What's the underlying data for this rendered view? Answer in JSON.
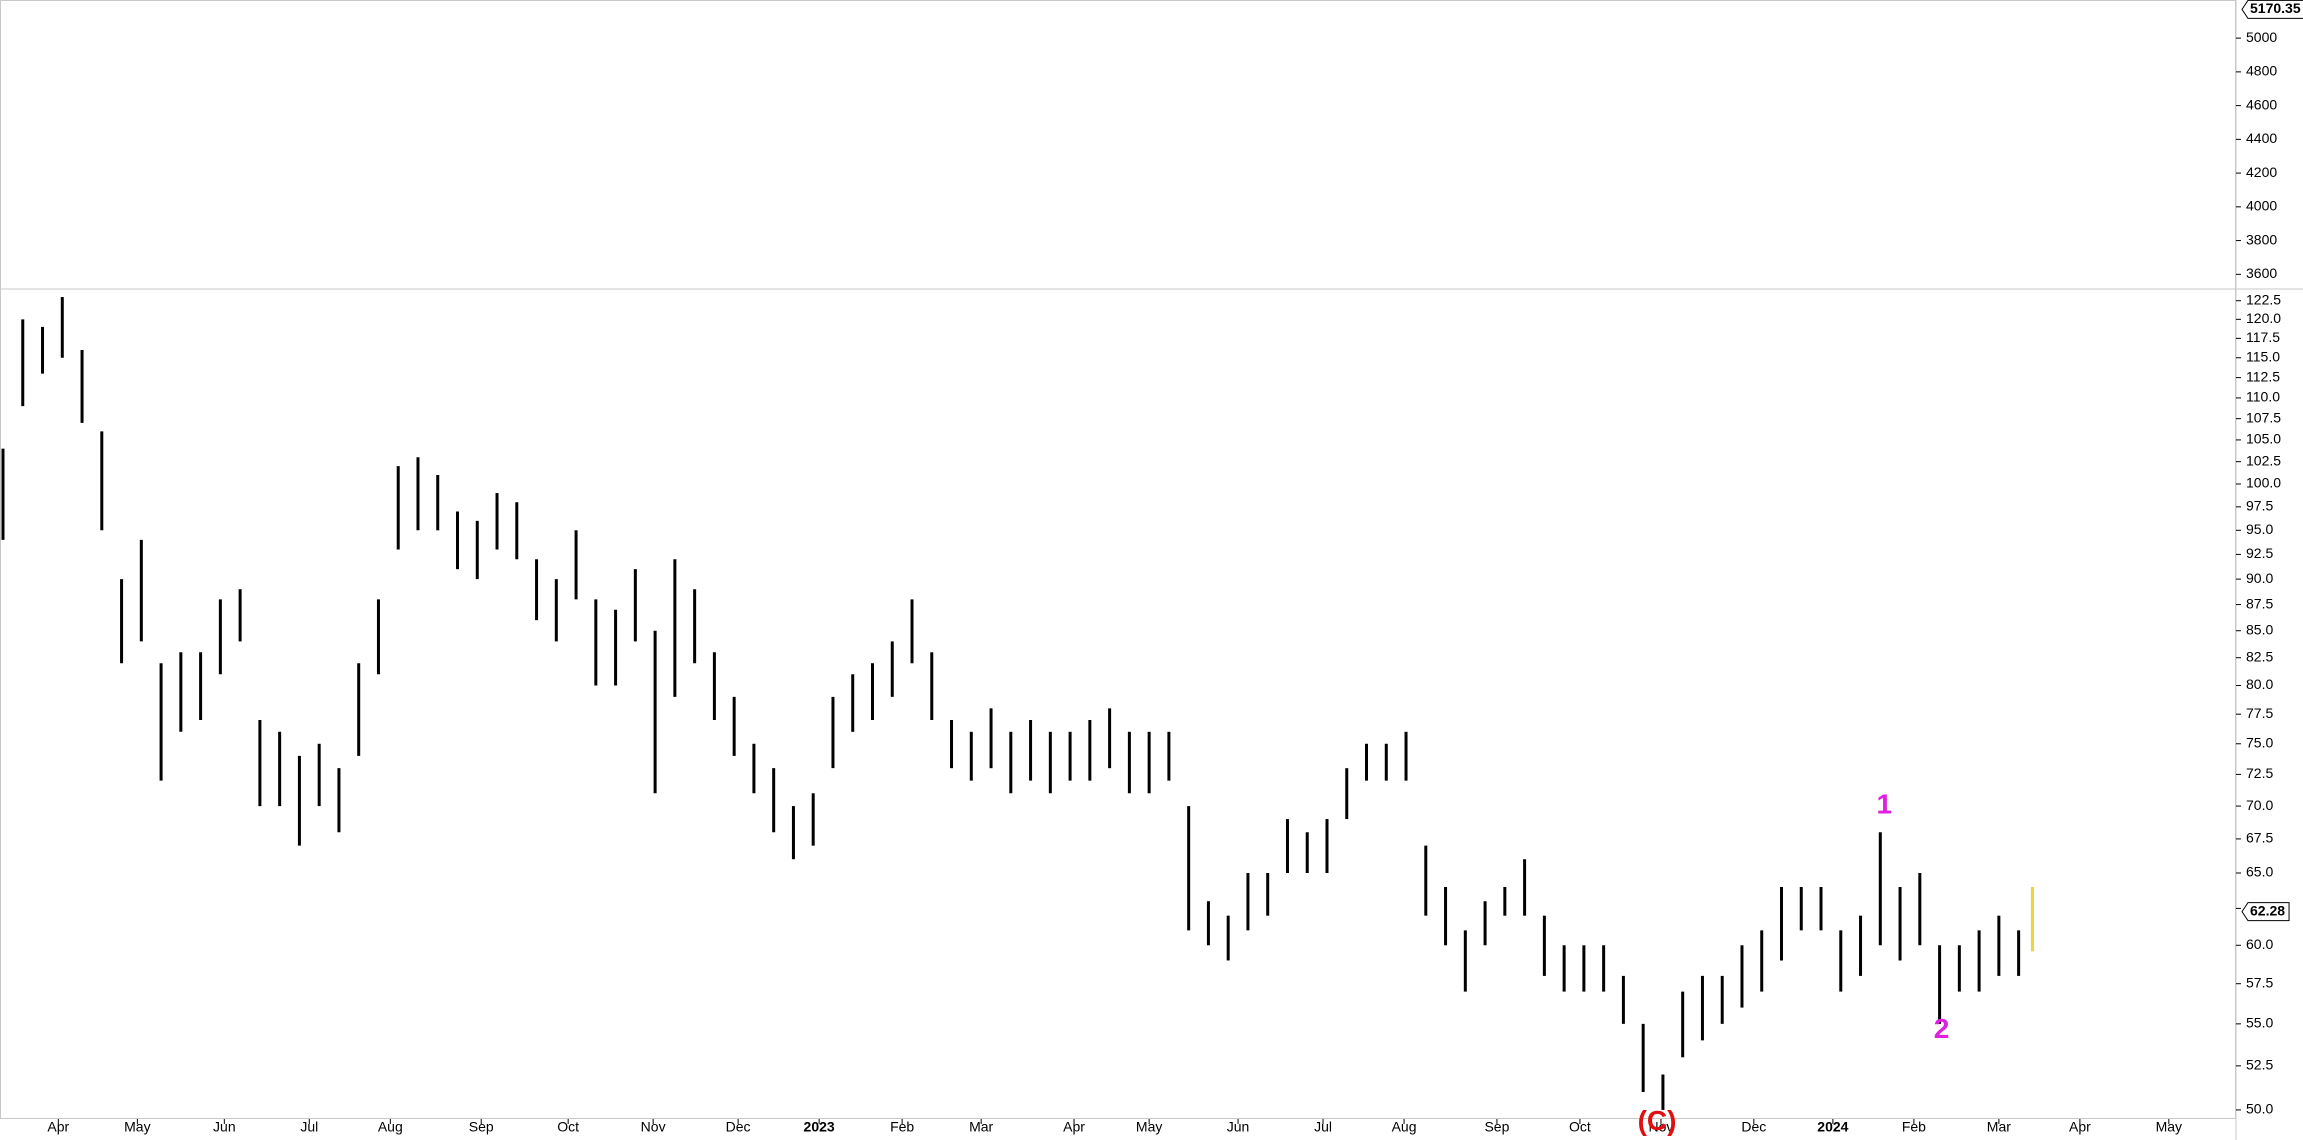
{
  "chart_data": [
    {
      "type": "axis-panel",
      "ylim": [
        3513,
        5226
      ],
      "yticks": [
        3600,
        3800,
        4000,
        4200,
        4400,
        4600,
        4800,
        5000
      ],
      "last_value": 5170.35
    },
    {
      "type": "range-bar",
      "log_scale": true,
      "color": "#000000",
      "highlight_color": "#f2d338",
      "x": [
        0,
        1,
        2,
        3,
        4,
        5,
        6,
        7,
        8,
        9,
        10,
        11,
        12,
        13,
        14,
        15,
        16,
        17,
        18,
        19,
        20,
        21,
        22,
        23,
        24,
        25,
        26,
        27,
        28,
        29,
        30,
        31,
        32,
        33,
        34,
        35,
        36,
        37,
        38,
        39,
        40,
        41,
        42,
        43,
        44,
        45,
        46,
        47,
        48,
        49,
        50,
        51,
        52,
        53,
        54,
        55,
        56,
        57,
        58,
        59,
        60,
        61,
        62,
        63,
        64,
        65,
        66,
        67,
        68,
        69,
        70,
        71,
        72,
        73,
        74,
        75,
        76,
        77,
        78,
        79,
        80,
        81,
        82,
        83,
        84,
        85,
        86,
        87,
        88,
        89,
        90,
        91,
        92,
        93,
        94,
        95,
        96,
        97,
        98,
        99,
        100,
        101,
        102,
        102.7
      ],
      "high": [
        104,
        120,
        119,
        123,
        116,
        106,
        90,
        94,
        82,
        83,
        83,
        88,
        89,
        77,
        76,
        74,
        75,
        73,
        82,
        88,
        102,
        103,
        101,
        97,
        96,
        99,
        98,
        92,
        90,
        95,
        88,
        87,
        91,
        85,
        92,
        89,
        83,
        79,
        75,
        73,
        70,
        71,
        79,
        81,
        82,
        84,
        88,
        83,
        77,
        76,
        78,
        76,
        77,
        76,
        76,
        77,
        78,
        76,
        76,
        76,
        70,
        63,
        62,
        65,
        65,
        69,
        68,
        69,
        73,
        75,
        75,
        76,
        67,
        64,
        61,
        63,
        64,
        66,
        62,
        60,
        60,
        60,
        58,
        55,
        52,
        57,
        58,
        58,
        60,
        61,
        64,
        64,
        64,
        61,
        62,
        68,
        64,
        65,
        60,
        60,
        61,
        62,
        61,
        64
      ],
      "low": [
        94,
        109,
        113,
        115,
        107,
        95,
        82,
        84,
        72,
        76,
        77,
        81,
        84,
        70,
        70,
        67,
        70,
        68,
        74,
        81,
        93,
        95,
        95,
        91,
        90,
        93,
        92,
        86,
        84,
        88,
        80,
        80,
        84,
        71,
        79,
        82,
        77,
        74,
        71,
        68,
        66,
        67,
        73,
        76,
        77,
        79,
        82,
        77,
        73,
        72,
        73,
        71,
        72,
        71,
        72,
        72,
        73,
        71,
        71,
        72,
        61,
        60,
        59,
        61,
        62,
        65,
        65,
        65,
        69,
        72,
        72,
        72,
        62,
        60,
        57,
        60,
        62,
        62,
        58,
        57,
        57,
        57,
        55,
        51,
        50,
        53,
        54,
        55,
        56,
        57,
        59,
        61,
        61,
        57,
        58,
        60,
        59,
        60,
        55,
        57,
        57,
        58,
        58,
        59.6
      ],
      "xlim": [
        0,
        113
      ],
      "xticks": [
        {
          "value": 2.8,
          "label": "Apr"
        },
        {
          "value": 6.8,
          "label": "May"
        },
        {
          "value": 11.2,
          "label": "Jun"
        },
        {
          "value": 15.5,
          "label": "Jul"
        },
        {
          "value": 19.6,
          "label": "Aug"
        },
        {
          "value": 24.2,
          "label": "Sep"
        },
        {
          "value": 28.6,
          "label": "Oct"
        },
        {
          "value": 32.9,
          "label": "Nov"
        },
        {
          "value": 37.2,
          "label": "Dec"
        },
        {
          "value": 41.3,
          "label": "2023"
        },
        {
          "value": 45.5,
          "label": "Feb"
        },
        {
          "value": 49.5,
          "label": "Mar"
        },
        {
          "value": 54.2,
          "label": "Apr"
        },
        {
          "value": 58.0,
          "label": "May"
        },
        {
          "value": 62.5,
          "label": "Jun"
        },
        {
          "value": 66.8,
          "label": "Jul"
        },
        {
          "value": 70.9,
          "label": "Aug"
        },
        {
          "value": 75.6,
          "label": "Sep"
        },
        {
          "value": 79.8,
          "label": "Oct"
        },
        {
          "value": 83.9,
          "label": "Nov"
        },
        {
          "value": 88.6,
          "label": "Dec"
        },
        {
          "value": 92.6,
          "label": "2024"
        },
        {
          "value": 96.7,
          "label": "Feb"
        },
        {
          "value": 101.0,
          "label": "Mar"
        },
        {
          "value": 105.1,
          "label": "Apr"
        },
        {
          "value": 109.6,
          "label": "May"
        }
      ],
      "ylim": [
        49.5,
        124.1
      ],
      "yticks": [
        {
          "value": 50,
          "label": "50.0"
        },
        52.5,
        {
          "value": 55,
          "label": "55.0"
        },
        57.5,
        {
          "value": 60,
          "label": "60.0"
        },
        62.5,
        {
          "value": 65,
          "label": "65.0"
        },
        67.5,
        {
          "value": 70,
          "label": "70.0"
        },
        72.5,
        {
          "value": 75,
          "label": "75.0"
        },
        77.5,
        {
          "value": 80,
          "label": "80.0"
        },
        82.5,
        {
          "value": 85,
          "label": "85.0"
        },
        87.5,
        {
          "value": 90,
          "label": "90.0"
        },
        92.5,
        {
          "value": 95,
          "label": "95.0"
        },
        97.5,
        {
          "value": 100,
          "label": "100.0"
        },
        102.5,
        {
          "value": 105,
          "label": "105.0"
        },
        107.5,
        {
          "value": 110,
          "label": "110.0"
        },
        112.5,
        {
          "value": 115,
          "label": "115.0"
        },
        117.5,
        {
          "value": 120,
          "label": "120.0"
        },
        122.5
      ],
      "last_value": 62.28,
      "annotations": [
        {
          "text": "1",
          "x": 95.2,
          "y": 70.0,
          "color": "#e020e0"
        },
        {
          "text": "2",
          "x": 98.1,
          "y": 54.6,
          "color": "#e020e0"
        },
        {
          "text": "(C)",
          "x": 83.7,
          "y": 49.3,
          "color": "#e01010"
        }
      ]
    }
  ]
}
